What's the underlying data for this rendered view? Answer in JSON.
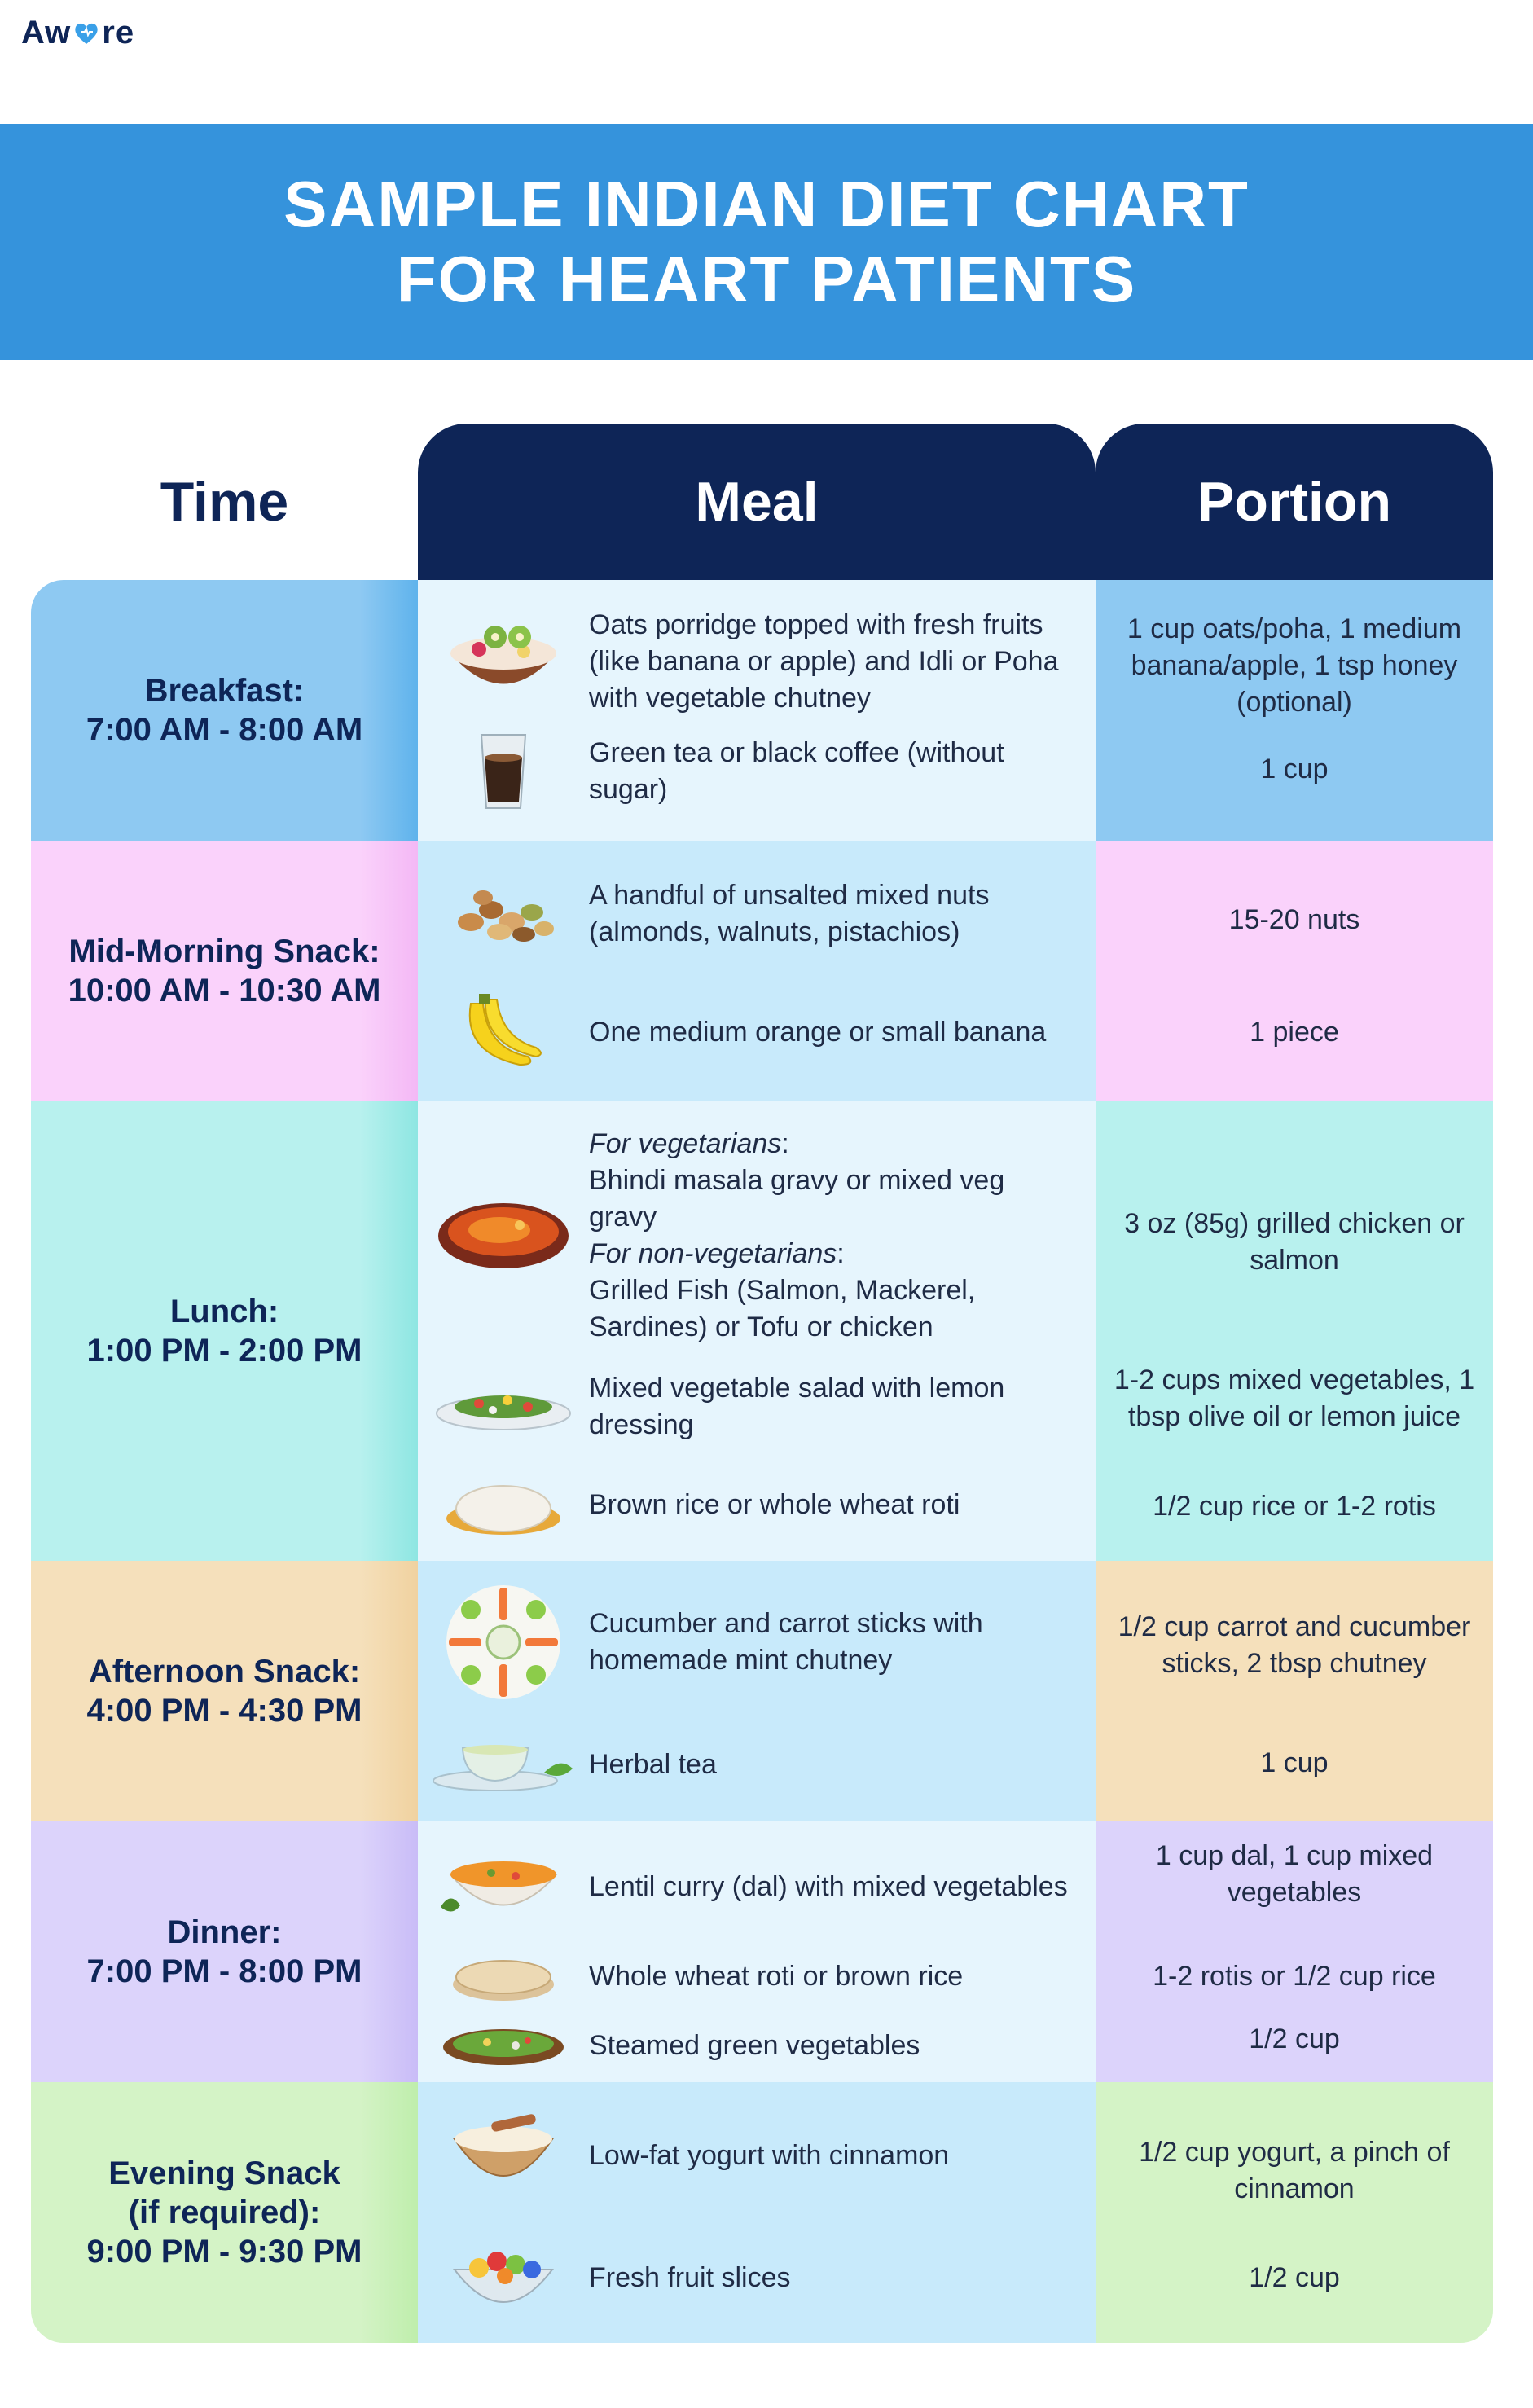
{
  "brand": {
    "logo_left": "Aw",
    "logo_right": "re"
  },
  "title": {
    "line1": "SAMPLE INDIAN DIET CHART",
    "line2": "FOR HEART PATIENTS"
  },
  "columns": {
    "time": "Time",
    "meal": "Meal",
    "portion": "Portion"
  },
  "rows": [
    {
      "time_line1": "Breakfast:",
      "time_line2": "7:00 AM - 8:00 AM",
      "items": [
        {
          "icon": "oats-bowl-icon",
          "text": "Oats porridge topped with fresh fruits (like banana or apple) and Idli or Poha with vegetable chutney",
          "portion": "1 cup oats/poha, 1 medium banana/apple, 1 tsp honey (optional)"
        },
        {
          "icon": "coffee-glass-icon",
          "text": "Green tea or black coffee (without sugar)",
          "portion": "1 cup"
        }
      ]
    },
    {
      "time_line1": "Mid-Morning Snack:",
      "time_line2": "10:00 AM - 10:30 AM",
      "items": [
        {
          "icon": "mixed-nuts-icon",
          "text": "A handful of unsalted mixed nuts (almonds, walnuts, pistachios)",
          "portion": "15-20 nuts"
        },
        {
          "icon": "bananas-icon",
          "text": "One medium orange or small banana",
          "portion": "1 piece"
        }
      ]
    },
    {
      "time_line1": "Lunch:",
      "time_line2": "1:00 PM - 2:00 PM",
      "items": [
        {
          "icon": "curry-dish-icon",
          "veg_label": "For vegetarians",
          "veg_text": "Bhindi masala gravy or mixed veg gravy",
          "nonveg_label": "For non-vegetarians",
          "nonveg_text": "Grilled Fish (Salmon, Mackerel, Sardines) or Tofu or chicken",
          "portion": "3 oz (85g) grilled chicken or salmon"
        },
        {
          "icon": "salad-plate-icon",
          "text": "Mixed vegetable salad with lemon dressing",
          "portion": "1-2 cups mixed vegetables, 1 tbsp olive oil or lemon juice"
        },
        {
          "icon": "rice-plate-icon",
          "text": "Brown rice or whole wheat roti",
          "portion": "1/2 cup rice or 1-2 rotis"
        }
      ]
    },
    {
      "time_line1": "Afternoon Snack:",
      "time_line2": "4:00 PM - 4:30 PM",
      "items": [
        {
          "icon": "veggie-platter-icon",
          "text": "Cucumber and carrot sticks with homemade mint chutney",
          "portion": "1/2 cup carrot and cucumber sticks, 2 tbsp chutney"
        },
        {
          "icon": "tea-cup-icon",
          "text": "Herbal tea",
          "portion": "1 cup"
        }
      ]
    },
    {
      "time_line1": "Dinner:",
      "time_line2": "7:00 PM - 8:00 PM",
      "items": [
        {
          "icon": "dal-bowl-icon",
          "text": "Lentil curry (dal) with mixed vegetables",
          "portion": "1 cup dal, 1 cup mixed vegetables"
        },
        {
          "icon": "roti-stack-icon",
          "text": "Whole wheat roti or brown rice",
          "portion": "1-2 rotis or 1/2 cup rice"
        },
        {
          "icon": "green-veg-dish-icon",
          "text": "Steamed green vegetables",
          "portion": "1/2 cup"
        }
      ]
    },
    {
      "time_line1": "Evening Snack",
      "time_line2": "(if required):",
      "time_line3": "9:00 PM - 9:30 PM",
      "items": [
        {
          "icon": "yogurt-bowl-icon",
          "text": "Low-fat yogurt with cinnamon",
          "portion": "1/2 cup yogurt, a pinch of cinnamon"
        },
        {
          "icon": "fruit-bowl-icon",
          "text": "Fresh fruit slices",
          "portion": "1/2 cup"
        }
      ]
    }
  ],
  "colors": {
    "banner": "#3593dc",
    "header_dark": "#0e2557",
    "breakfast": "#8ec9f2",
    "midmorning": "#fad2fb",
    "lunch": "#b8f1ee",
    "afternoon": "#f5e0bb",
    "dinner": "#dcd3fb",
    "evening": "#d4f3c6",
    "meal_light": "#e6f5fd",
    "meal_blue": "#c8eafb"
  }
}
